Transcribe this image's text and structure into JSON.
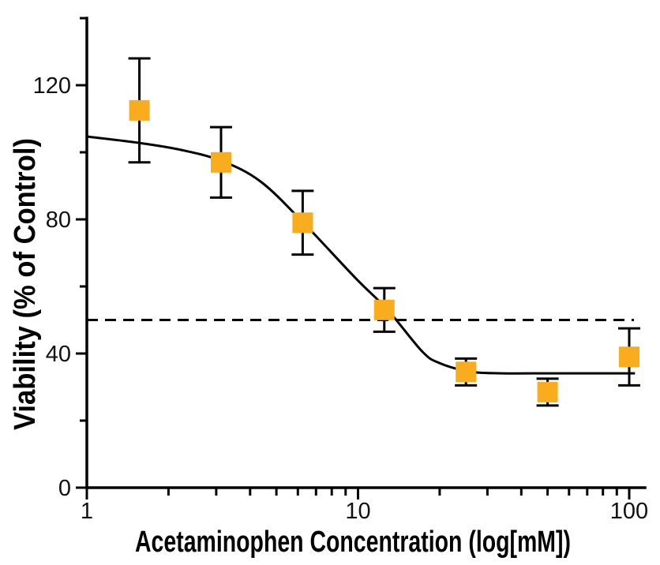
{
  "chart_data": {
    "type": "scatter",
    "title": "",
    "xlabel": "Acetaminophen Concentration (log[mM])",
    "ylabel": "Viability (% of Control)",
    "x_scale": "log",
    "xlim": [
      1,
      114
    ],
    "ylim": [
      0,
      140
    ],
    "grid": false,
    "legend_position": "none",
    "x_major_ticks": [
      1,
      10,
      100
    ],
    "x_major_tick_labels": [
      "1",
      "10",
      "100"
    ],
    "x_minor_ticks": [
      2,
      3,
      4,
      5,
      6,
      7,
      8,
      9,
      20,
      30,
      40,
      50,
      60,
      70,
      80,
      90
    ],
    "y_major_ticks": [
      0,
      40,
      80,
      120
    ],
    "y_major_tick_labels": [
      "0",
      "40",
      "80",
      "120"
    ],
    "y_minor_ticks": [
      20,
      60,
      100,
      140
    ],
    "series": [
      {
        "name": "viability-data",
        "marker": "square",
        "marker_color": "#F9AC1E",
        "error_bar_color": "#000000",
        "points": [
          {
            "x": 1.5625,
            "y": 112.5,
            "err": 15.5
          },
          {
            "x": 3.125,
            "y": 97,
            "err": 10.5
          },
          {
            "x": 6.25,
            "y": 79,
            "err": 9.5
          },
          {
            "x": 12.5,
            "y": 53,
            "err": 6.5
          },
          {
            "x": 25,
            "y": 34.5,
            "err": 4
          },
          {
            "x": 50,
            "y": 28.5,
            "err": 4
          },
          {
            "x": 100,
            "y": 39,
            "err": 8.5
          }
        ]
      }
    ],
    "fit_curve": {
      "name": "sigmoidal-dose-response-fit",
      "color": "#000000",
      "points": [
        [
          1.0,
          104.7
        ],
        [
          1.56,
          102.8
        ],
        [
          2.23,
          100.7
        ],
        [
          3.15,
          97.4
        ],
        [
          4.37,
          91.3
        ],
        [
          6.24,
          79.3
        ],
        [
          9.76,
          62.6
        ],
        [
          12.9,
          52.9
        ],
        [
          17.2,
          40.7
        ],
        [
          19.9,
          37.2
        ],
        [
          25.7,
          34.6
        ],
        [
          33.7,
          34.1
        ],
        [
          50,
          34.1
        ],
        [
          70,
          34.1
        ],
        [
          105,
          34.1
        ]
      ]
    },
    "reference_line": {
      "y": 50,
      "style": "dashed",
      "color": "#000000"
    }
  },
  "colors": {
    "background": "#FFFFFF",
    "axis": "#000000",
    "marker": "#F9AC1E"
  }
}
